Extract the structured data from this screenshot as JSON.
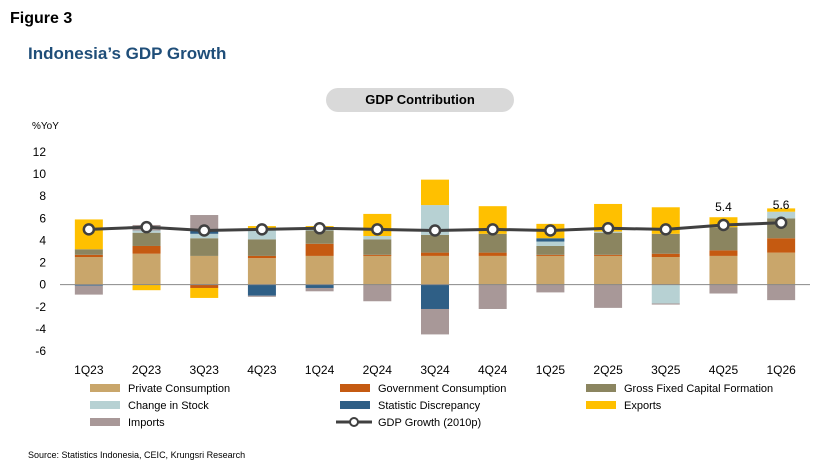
{
  "figure_label": "Figure 3",
  "title": "Indonesia’s GDP Growth",
  "subtitle": "GDP Contribution",
  "source": "Source: Statistics Indonesia, CEIC, Krungsri Research",
  "chart_data": {
    "type": "bar",
    "stacked": true,
    "ylabel": "%YoY",
    "ylim": [
      -6,
      12
    ],
    "yticks": [
      -6,
      -4,
      -2,
      0,
      2,
      4,
      6,
      8,
      10,
      12
    ],
    "grid": false,
    "legend_position": "bottom",
    "categories": [
      "1Q23",
      "2Q23",
      "3Q23",
      "4Q23",
      "1Q24",
      "2Q24",
      "3Q24",
      "4Q24",
      "1Q25",
      "2Q25",
      "3Q25",
      "4Q25",
      "1Q26"
    ],
    "series": [
      {
        "name": "Private Consumption",
        "color": "#c9a66b",
        "values": [
          2.5,
          2.8,
          2.6,
          2.4,
          2.6,
          2.6,
          2.6,
          2.6,
          2.6,
          2.6,
          2.5,
          2.6,
          2.9
        ]
      },
      {
        "name": "Government Consumption",
        "color": "#c55a11",
        "values": [
          0.2,
          0.7,
          -0.3,
          0.2,
          1.1,
          0.1,
          0.3,
          0.3,
          0.1,
          0.1,
          0.3,
          0.5,
          1.3
        ]
      },
      {
        "name": "Gross Fixed Capital Formation",
        "color": "#8b8560",
        "values": [
          0.5,
          1.2,
          1.6,
          1.5,
          1.2,
          1.4,
          1.6,
          1.7,
          0.8,
          2.0,
          1.8,
          2.1,
          1.8
        ]
      },
      {
        "name": "Change in Stock",
        "color": "#b7d1d3",
        "values": [
          0.0,
          0.2,
          0.4,
          0.9,
          0.2,
          0.3,
          2.7,
          0.0,
          0.4,
          0.1,
          -1.7,
          0.0,
          0.6
        ]
      },
      {
        "name": "Statistic Discrepancy",
        "color": "#2f5f86",
        "values": [
          -0.1,
          0.0,
          0.3,
          -1.0,
          -0.3,
          0.0,
          -2.2,
          0.0,
          0.3,
          0.0,
          0.0,
          0.0,
          0.0
        ]
      },
      {
        "name": "Exports",
        "color": "#ffc000",
        "values": [
          2.7,
          -0.5,
          -0.9,
          0.3,
          0.2,
          2.0,
          2.3,
          2.5,
          1.3,
          2.5,
          2.4,
          0.9,
          0.3
        ]
      },
      {
        "name": "Imports",
        "color": "#a89898",
        "values": [
          -0.8,
          0.5,
          1.4,
          -0.1,
          -0.3,
          -1.5,
          -2.3,
          -2.2,
          -0.7,
          -2.1,
          -0.1,
          -0.8,
          -1.4
        ]
      }
    ],
    "line": {
      "name": "GDP Growth (2010p)",
      "color": "#404040",
      "values": [
        5.0,
        5.2,
        4.9,
        5.0,
        5.1,
        5.0,
        4.9,
        5.0,
        4.9,
        5.1,
        5.0,
        5.4,
        5.6
      ]
    },
    "data_labels": [
      {
        "category": "4Q25",
        "text": "5.4"
      },
      {
        "category": "1Q26",
        "text": "5.6"
      }
    ]
  }
}
